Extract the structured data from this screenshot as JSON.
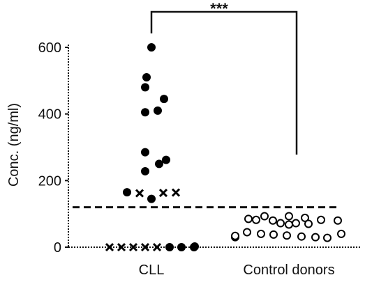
{
  "chart_data": {
    "type": "scatter",
    "ylabel": "Conc. (ng/ml)",
    "ylim": [
      0,
      600
    ],
    "yticks": [
      0,
      200,
      400,
      600
    ],
    "categories": [
      "CLL",
      "Control donors"
    ],
    "threshold": 120,
    "significance": "***",
    "groups": [
      {
        "category": "CLL",
        "points": [
          {
            "y": 600,
            "marker": "filled"
          },
          {
            "y": 510,
            "marker": "filled"
          },
          {
            "y": 480,
            "marker": "filled"
          },
          {
            "y": 445,
            "marker": "filled"
          },
          {
            "y": 410,
            "marker": "filled"
          },
          {
            "y": 405,
            "marker": "filled"
          },
          {
            "y": 285,
            "marker": "filled"
          },
          {
            "y": 262,
            "marker": "filled"
          },
          {
            "y": 250,
            "marker": "filled"
          },
          {
            "y": 228,
            "marker": "filled"
          },
          {
            "y": 165,
            "marker": "filled"
          },
          {
            "y": 145,
            "marker": "filled"
          },
          {
            "y": 162,
            "marker": "cross"
          },
          {
            "y": 163,
            "marker": "cross"
          },
          {
            "y": 164,
            "marker": "cross"
          },
          {
            "y": 0,
            "marker": "cross"
          },
          {
            "y": 0,
            "marker": "cross"
          },
          {
            "y": 0,
            "marker": "cross"
          },
          {
            "y": 0,
            "marker": "cross"
          },
          {
            "y": 0,
            "marker": "cross"
          },
          {
            "y": 0,
            "marker": "filled"
          },
          {
            "y": 0,
            "marker": "filled"
          },
          {
            "y": 0,
            "marker": "filled"
          },
          {
            "y": 2,
            "marker": "filled"
          }
        ]
      },
      {
        "category": "Control donors",
        "points": [
          {
            "y": 93,
            "marker": "open"
          },
          {
            "y": 93,
            "marker": "open"
          },
          {
            "y": 88,
            "marker": "open"
          },
          {
            "y": 85,
            "marker": "open"
          },
          {
            "y": 82,
            "marker": "open"
          },
          {
            "y": 82,
            "marker": "open"
          },
          {
            "y": 80,
            "marker": "open"
          },
          {
            "y": 80,
            "marker": "open"
          },
          {
            "y": 72,
            "marker": "open"
          },
          {
            "y": 72,
            "marker": "open"
          },
          {
            "y": 70,
            "marker": "open"
          },
          {
            "y": 68,
            "marker": "open"
          },
          {
            "y": 45,
            "marker": "open"
          },
          {
            "y": 40,
            "marker": "open"
          },
          {
            "y": 38,
            "marker": "open"
          },
          {
            "y": 35,
            "marker": "open"
          },
          {
            "y": 32,
            "marker": "open"
          },
          {
            "y": 30,
            "marker": "open"
          },
          {
            "y": 28,
            "marker": "open"
          },
          {
            "y": 30,
            "marker": "open"
          },
          {
            "y": 34,
            "marker": "open"
          },
          {
            "y": 40,
            "marker": "open"
          }
        ]
      }
    ]
  }
}
